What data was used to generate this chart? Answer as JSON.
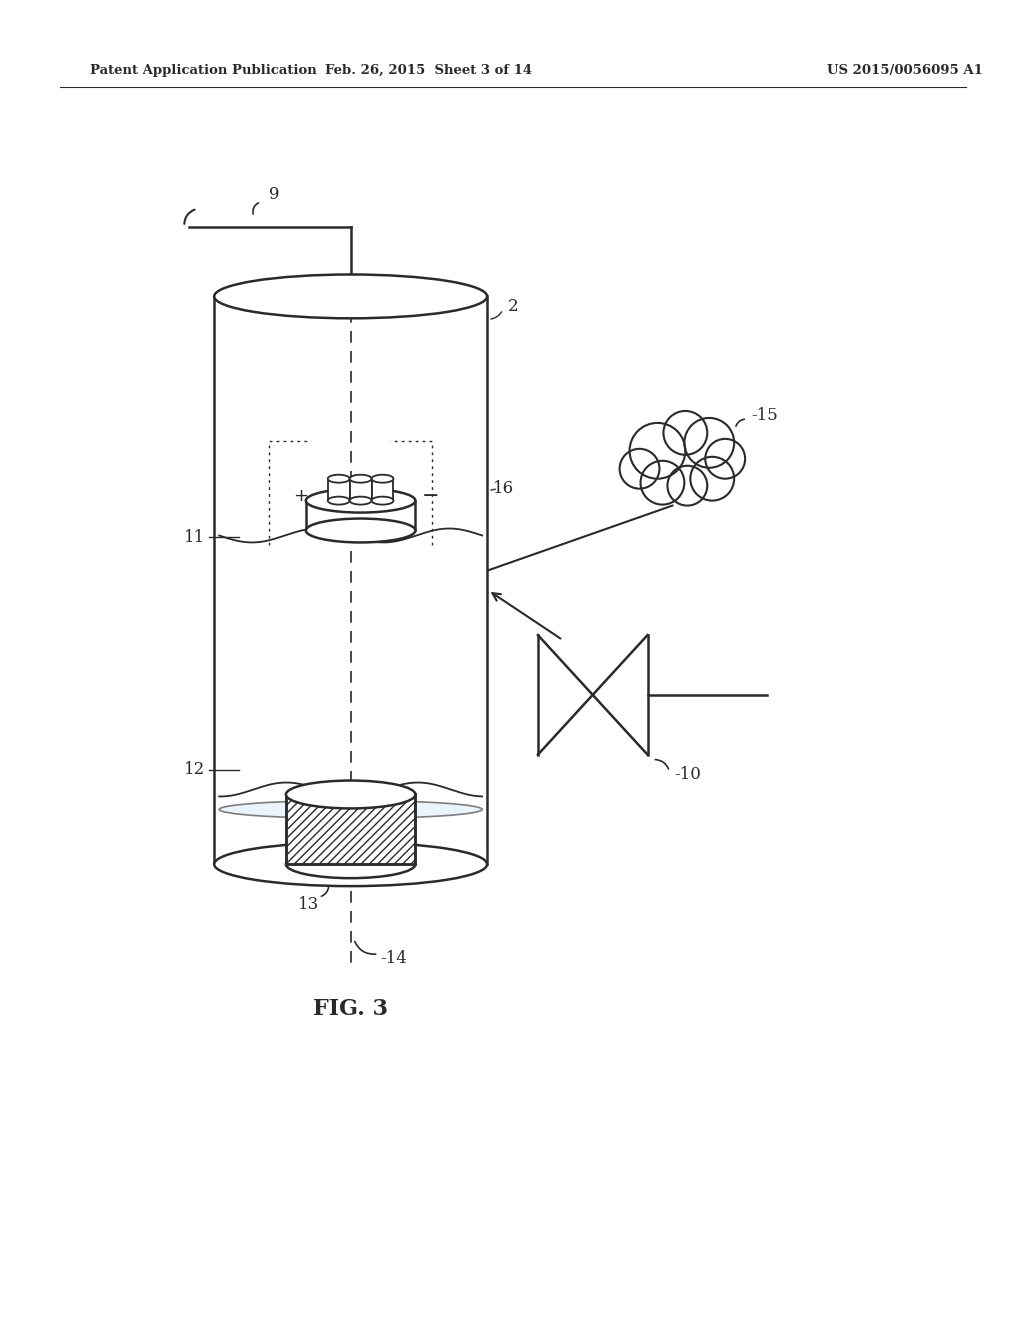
{
  "header_left": "Patent Application Publication",
  "header_mid": "Feb. 26, 2015  Sheet 3 of 14",
  "header_right": "US 2015/0056095 A1",
  "fig_label": "FIG. 3",
  "bg_color": "#ffffff",
  "line_color": "#2a2a2a"
}
